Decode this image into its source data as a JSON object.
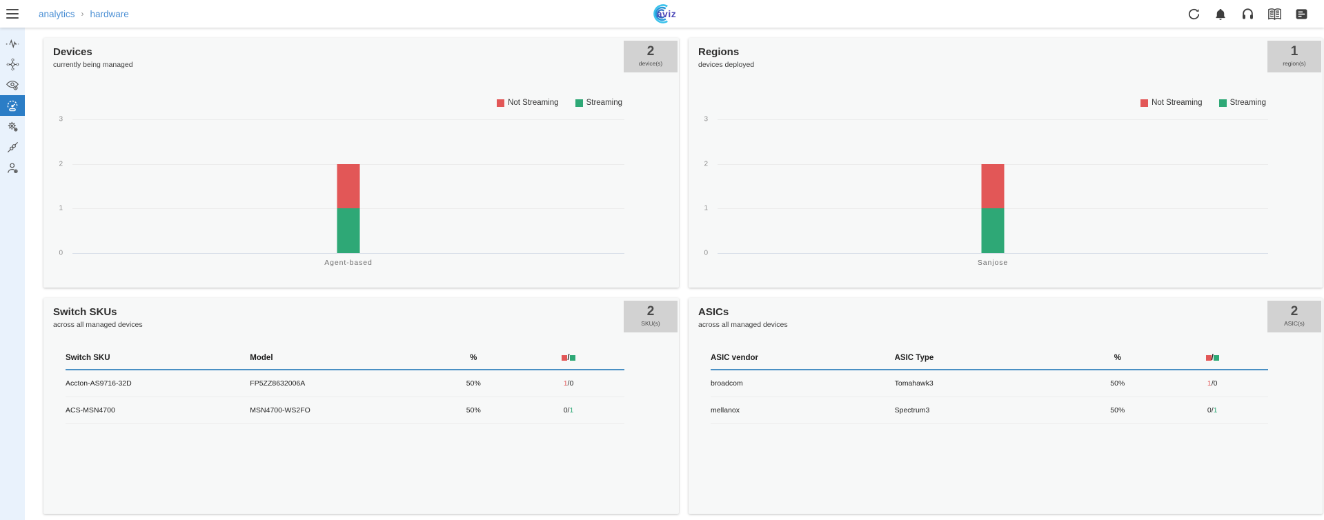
{
  "header": {
    "breadcrumb": {
      "items": [
        "analytics",
        "hardware"
      ],
      "separator": "›"
    },
    "logo_text": "aviz",
    "action_icons": [
      "refresh-icon",
      "notifications-bell-icon",
      "support-headphones-icon",
      "documentation-book-icon",
      "audit-log-icon"
    ]
  },
  "sidebar": {
    "icons": [
      "pulse-icon",
      "network-topology-icon",
      "eye-icon",
      "gauge-icon",
      "gears-icon",
      "cable-icon",
      "user-icon"
    ],
    "active_index": 3
  },
  "panels": {
    "devices": {
      "title": "Devices",
      "subtitle": "currently being managed",
      "badge": {
        "value": "2",
        "label": "device(s)"
      }
    },
    "regions": {
      "title": "Regions",
      "subtitle": "devices deployed",
      "badge": {
        "value": "1",
        "label": "region(s)"
      }
    },
    "switch_skus": {
      "title": "Switch SKUs",
      "subtitle": "across all managed devices",
      "badge": {
        "value": "2",
        "label": "SKU(s)"
      },
      "table": {
        "headers": [
          "Switch SKU",
          "Model",
          "%"
        ],
        "ratio_separator": "/",
        "rows": [
          {
            "col1": "Accton-AS9716-32D",
            "col2": "FP5ZZ8632006A",
            "percent": "50%",
            "not_streaming": 1,
            "streaming": 0
          },
          {
            "col1": "ACS-MSN4700",
            "col2": "MSN4700-WS2FO",
            "percent": "50%",
            "not_streaming": 0,
            "streaming": 1
          }
        ]
      }
    },
    "asics": {
      "title": "ASICs",
      "subtitle": "across all managed devices",
      "badge": {
        "value": "2",
        "label": "ASIC(s)"
      },
      "table": {
        "headers": [
          "ASIC vendor",
          "ASIC Type",
          "%"
        ],
        "ratio_separator": "/",
        "rows": [
          {
            "col1": "broadcom",
            "col2": "Tomahawk3",
            "percent": "50%",
            "not_streaming": 1,
            "streaming": 0
          },
          {
            "col1": "mellanox",
            "col2": "Spectrum3",
            "percent": "50%",
            "not_streaming": 0,
            "streaming": 1
          }
        ]
      }
    }
  },
  "chart_data": [
    {
      "type": "bar",
      "stacked": true,
      "panel": "devices",
      "title": "Devices",
      "categories": [
        "Agent-based"
      ],
      "series": [
        {
          "name": "Not Streaming",
          "color": "#e25757",
          "values": [
            1
          ]
        },
        {
          "name": "Streaming",
          "color": "#2ea876",
          "values": [
            1
          ]
        }
      ],
      "xlabel": "",
      "ylabel": "",
      "ylim": [
        0,
        3
      ],
      "yticks": [
        0,
        1,
        2,
        3
      ],
      "grid": true,
      "legend_position": "top-right"
    },
    {
      "type": "bar",
      "stacked": true,
      "panel": "regions",
      "title": "Regions",
      "categories": [
        "Sanjose"
      ],
      "series": [
        {
          "name": "Not Streaming",
          "color": "#e25757",
          "values": [
            1
          ]
        },
        {
          "name": "Streaming",
          "color": "#2ea876",
          "values": [
            1
          ]
        }
      ],
      "xlabel": "",
      "ylabel": "",
      "ylim": [
        0,
        3
      ],
      "yticks": [
        0,
        1,
        2,
        3
      ],
      "grid": true,
      "legend_position": "top-right"
    }
  ],
  "colors": {
    "not_streaming_red": "#e25757",
    "streaming_green": "#2ea876",
    "active_nav_blue": "#2b7dc6",
    "breadcrumb_blue": "#4b8fd4",
    "badge_gray": "#d2d2d2",
    "table_header_underline": "#4a90c4",
    "sidebar_bg": "#e9f2fc",
    "panel_bg": "#f7f8f8"
  }
}
